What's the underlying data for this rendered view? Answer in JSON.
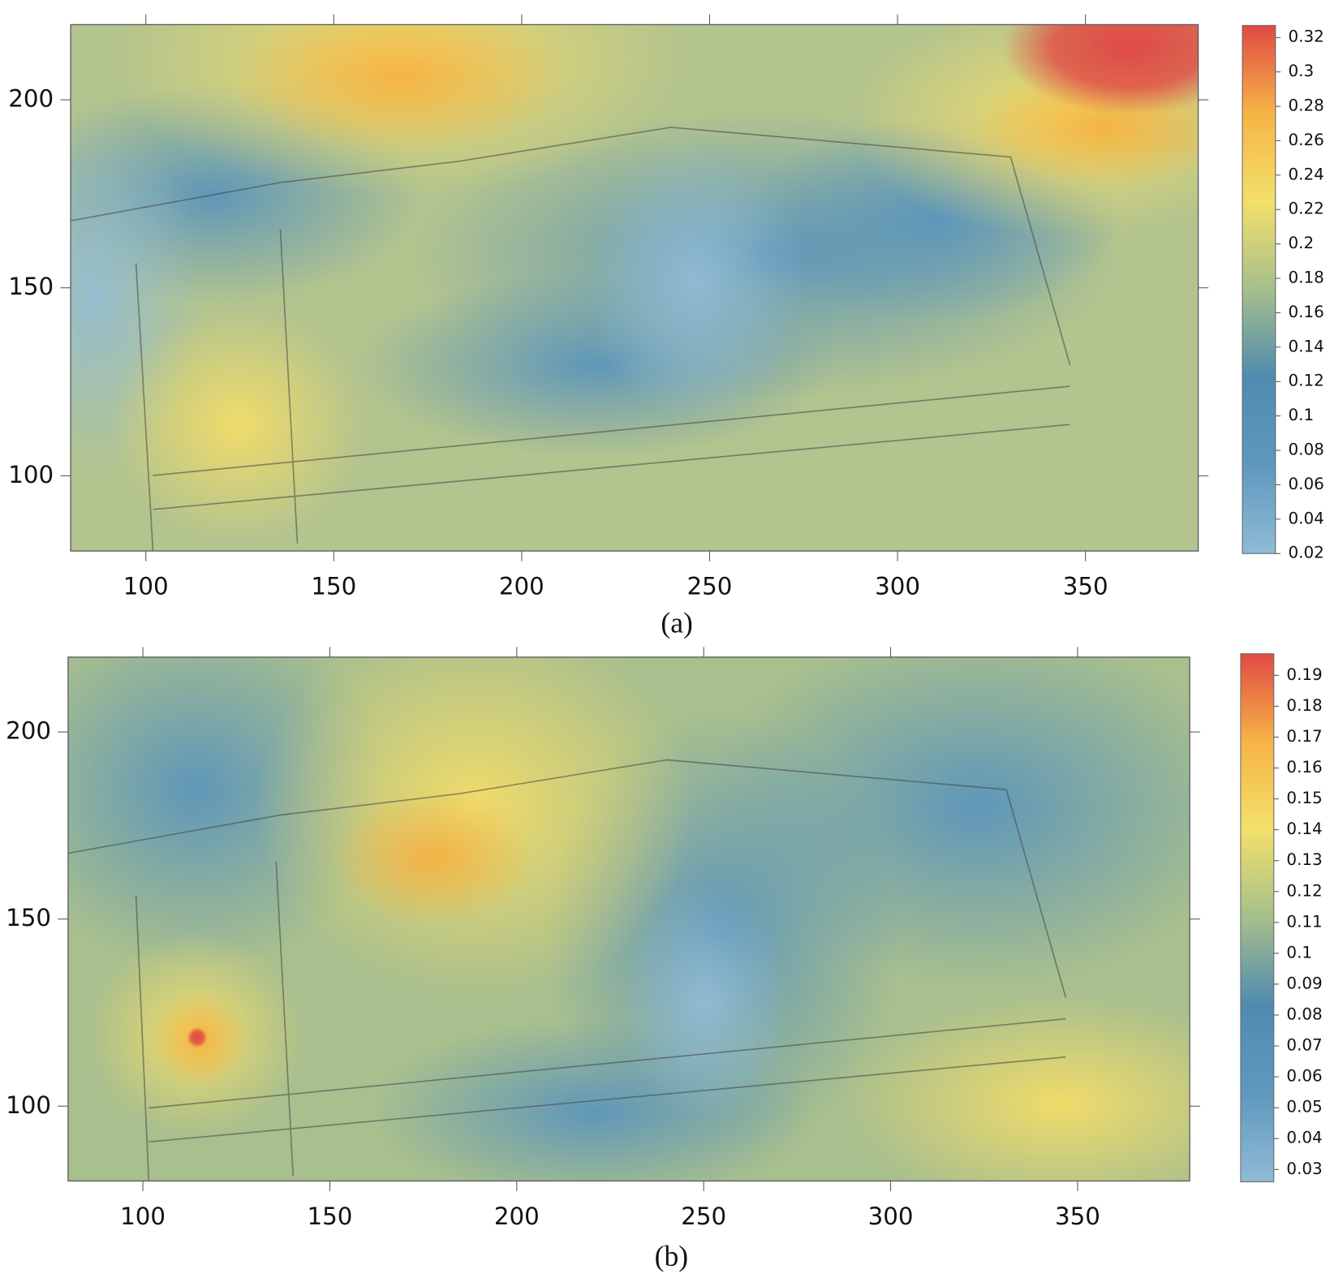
{
  "chart_data": [
    {
      "type": "heatmap",
      "caption": "(a)",
      "xlim": [
        80,
        380
      ],
      "ylim": [
        80,
        220
      ],
      "xticks": [
        100,
        150,
        200,
        250,
        300,
        350
      ],
      "yticks": [
        100,
        150,
        200
      ],
      "colorbar": {
        "clim": [
          0.02,
          0.327
        ],
        "ticks": [
          0.32,
          0.3,
          0.28,
          0.26,
          0.24,
          0.22,
          0.2,
          0.18,
          0.16,
          0.14,
          0.12,
          0.1,
          0.08,
          0.06,
          0.04,
          0.02
        ],
        "colors": [
          "#8fbbd6",
          "#5f98bd",
          "#4f8bb0",
          "#a6bf8c",
          "#f2e06a",
          "#f6b445",
          "#e04a45"
        ]
      }
    },
    {
      "type": "heatmap",
      "caption": "(b)",
      "xlim": [
        80,
        380
      ],
      "ylim": [
        80,
        220
      ],
      "xticks": [
        100,
        150,
        200,
        250,
        300,
        350
      ],
      "yticks": [
        100,
        150,
        200
      ],
      "colorbar": {
        "clim": [
          0.026,
          0.197
        ],
        "ticks": [
          0.19,
          0.18,
          0.17,
          0.16,
          0.15,
          0.14,
          0.13,
          0.12,
          0.11,
          0.1,
          0.09,
          0.08,
          0.07,
          0.06,
          0.05,
          0.04,
          0.03
        ],
        "colors": [
          "#8fbbd6",
          "#5f98bd",
          "#4f8bb0",
          "#a6bf8c",
          "#f2e06a",
          "#f6b445",
          "#e04a45"
        ]
      }
    }
  ]
}
